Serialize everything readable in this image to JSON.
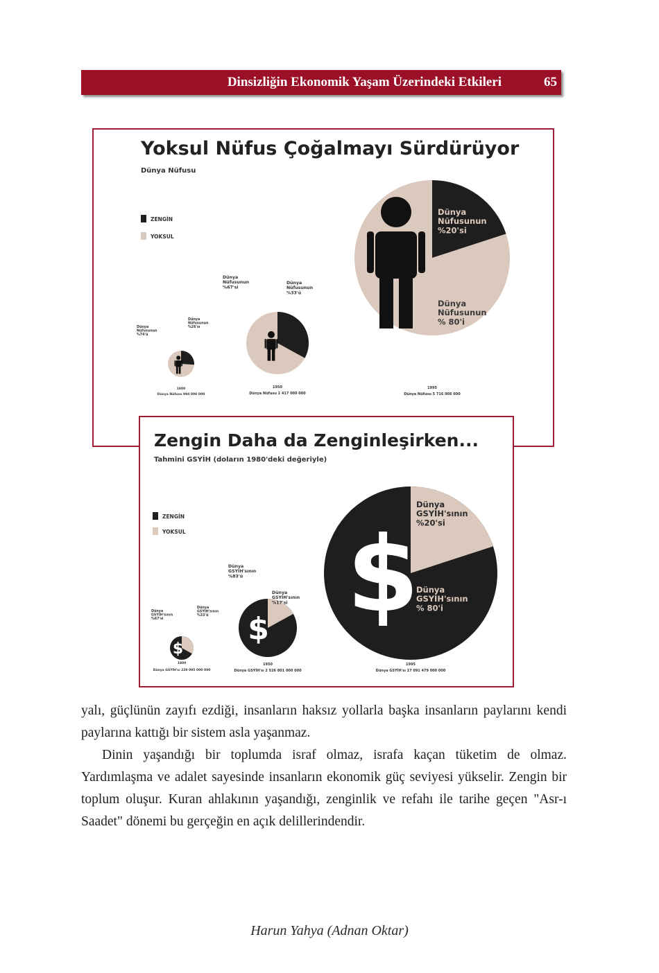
{
  "header": {
    "title": "Dinsizliğin Ekonomik Yaşam Üzerindeki Etkileri",
    "page_number": "65"
  },
  "infographic1": {
    "title": "Yoksul Nüfus Çoğalmayı Sürdürüyor",
    "subtitle": "Dünya Nüfusu",
    "legend": {
      "rich": "ZENGİN",
      "poor": "YOKSUL"
    },
    "pies": [
      {
        "rich_label": "Dünya Nüfusunun %26'sı",
        "poor_label": "Dünya Nüfusunun %74'ü",
        "year": "1800",
        "total": "Dünya Nüfusu 994 000 000"
      },
      {
        "rich_label": "Dünya Nüfusunun %33'ü",
        "poor_label": "Dünya Nüfusunun %67'si",
        "year": "1950",
        "total": "Dünya Nüfusu 2 417 000 000"
      },
      {
        "rich_label": "Dünya Nüfusunun %20'si",
        "poor_label": "Dünya Nüfusunun % 80'i",
        "year": "1995",
        "total": "Dünya Nüfusu 5 716 000 000"
      }
    ]
  },
  "infographic2": {
    "title": "Zengin Daha da Zenginleşirken...",
    "subtitle": "Tahmini GSYİH (doların 1980'deki değeriyle)",
    "legend": {
      "rich": "ZENGİN",
      "poor": "YOKSUL"
    },
    "pies": [
      {
        "rich_label": "Dünya GSYİH'sının %67'si",
        "poor_label": "Dünya GSYİH'sının %33'ü",
        "year": "1800",
        "total": "Dünya GSYİH'sı 229 095 000 000"
      },
      {
        "rich_label": "Dünya GSYİH'sının %83'ü",
        "poor_label": "Dünya GSYİH'sının %17'si",
        "year": "1950",
        "total": "Dünya GSYİH'sı 2 526 801 000 000"
      },
      {
        "rich_label": "Dünya GSYİH'sının % 80'i",
        "poor_label": "Dünya GSYİH'sının %20'si",
        "year": "1995",
        "total": "Dünya GSYİH'sı 17 091 479 000 000"
      }
    ]
  },
  "chart_data": [
    {
      "type": "pie",
      "title": "Yoksul Nüfus Çoğalmayı Sürdürüyor",
      "subtitle": "Dünya Nüfusu",
      "categories": [
        "1800",
        "1950",
        "1995"
      ],
      "series": [
        {
          "name": "ZENGİN",
          "values": [
            26,
            33,
            20
          ]
        },
        {
          "name": "YOKSUL",
          "values": [
            74,
            67,
            80
          ]
        }
      ],
      "totals": [
        "994 000 000",
        "2 417 000 000",
        "5 716 000 000"
      ],
      "colors": {
        "rich": "#1e1e1e",
        "poor": "#dcc9bd"
      }
    },
    {
      "type": "pie",
      "title": "Zengin Daha da Zenginleşirken...",
      "subtitle": "Tahmini GSYİH (doların 1980'deki değeriyle)",
      "categories": [
        "1800",
        "1950",
        "1995"
      ],
      "series": [
        {
          "name": "ZENGİN",
          "values": [
            67,
            83,
            80
          ]
        },
        {
          "name": "YOKSUL",
          "values": [
            33,
            17,
            20
          ]
        }
      ],
      "totals": [
        "229 095 000 000",
        "2 526 801 000 000",
        "17 091 479 000 000"
      ],
      "colors": {
        "rich": "#1e1e1e",
        "poor": "#dcc9bd"
      }
    }
  ],
  "body": {
    "paragraphs": [
      "yalı, güçlünün zayıfı ezdiği, insanların haksız yollarla başka insanların paylarını kendi paylarına kattığı bir sistem asla yaşanmaz.",
      "Dinin yaşandığı bir toplumda israf olmaz, israfa kaçan tüketim de olmaz. Yardımlaşma ve adalet sayesinde insanların ekonomik güç seviyesi yükselir. Zengin bir toplum oluşur. Kuran ahlakının yaşandığı, zenginlik ve refahı ile tarihe geçen \"Asr-ı Saadet\" dönemi bu gerçeğin en açık delillerindendir."
    ]
  },
  "footer": {
    "author": "Harun Yahya (Adnan Oktar)"
  }
}
